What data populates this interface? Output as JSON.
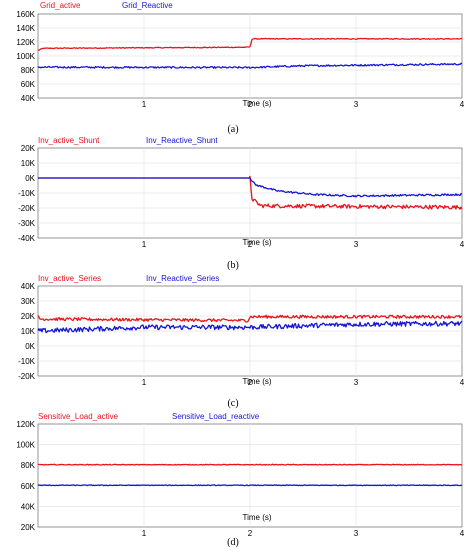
{
  "chart_data": [
    {
      "type": "line",
      "caption": "(a)",
      "xlabel": "Time (s)",
      "xlim": [
        0,
        4
      ],
      "xticks": [
        "1",
        "2",
        "3",
        "4"
      ],
      "ylim": [
        40000,
        160000
      ],
      "yticks": [
        "40K",
        "60K",
        "80K",
        "100K",
        "120K",
        "140K",
        "160K"
      ],
      "grid": true,
      "series": [
        {
          "name": "Grid_active",
          "color": "#e8141b",
          "noise": 600,
          "x": [
            0,
            0.05,
            1.97,
            2.0,
            2.02,
            4.0
          ],
          "y": [
            108000,
            111000,
            112500,
            113000,
            124500,
            124500
          ]
        },
        {
          "name": "Grid_Reactive",
          "color": "#1515d6",
          "noise": 1200,
          "x": [
            0,
            1.95,
            2.0,
            2.5,
            4.0
          ],
          "y": [
            84000,
            83500,
            83500,
            86000,
            88500
          ]
        }
      ]
    },
    {
      "type": "line",
      "caption": "(b)",
      "xlabel": "Time (s)",
      "xlim": [
        0,
        4
      ],
      "xticks": [
        "1",
        "2",
        "3",
        "4"
      ],
      "ylim": [
        -40000,
        20000
      ],
      "yticks": [
        "-40K",
        "-30K",
        "-20K",
        "-10K",
        "0K",
        "10K",
        "20K"
      ],
      "grid": true,
      "series": [
        {
          "name": "Inv_active_Shunt",
          "color": "#e8141b",
          "noise": 1300,
          "x": [
            0,
            2.0,
            2.02,
            2.1,
            4.0
          ],
          "y": [
            0,
            0,
            -14000,
            -18500,
            -19500
          ]
        },
        {
          "name": "Inv_Reactive_Shunt",
          "color": "#1515d6",
          "noise": 600,
          "x": [
            0,
            2.0,
            2.05,
            2.25,
            2.6,
            3.0,
            4.0
          ],
          "y": [
            0,
            0,
            -4500,
            -8500,
            -11000,
            -12000,
            -11000
          ]
        }
      ]
    },
    {
      "type": "line",
      "caption": "(c)",
      "xlabel": "Time (s)",
      "xlim": [
        0,
        4
      ],
      "xticks": [
        "1",
        "2",
        "3",
        "4"
      ],
      "ylim": [
        -20000,
        40000
      ],
      "yticks": [
        "-20K",
        "-10K",
        "0K",
        "10K",
        "20K",
        "30K",
        "40K"
      ],
      "grid": true,
      "series": [
        {
          "name": "Inv_active_Series",
          "color": "#e8141b",
          "noise": 1000,
          "x": [
            0,
            0.02,
            1.98,
            2.0,
            4.0
          ],
          "y": [
            20000,
            18000,
            17000,
            19500,
            19500
          ]
        },
        {
          "name": "Inv_Reactive_Series",
          "color": "#1515d6",
          "noise": 1600,
          "x": [
            0,
            1.0,
            2.0,
            3.0,
            4.0
          ],
          "y": [
            10000,
            12500,
            12500,
            14500,
            15000
          ]
        }
      ]
    },
    {
      "type": "line",
      "caption": "(d)",
      "xlabel": "Time (s)",
      "xlim": [
        0,
        4
      ],
      "xticks": [
        "1",
        "2",
        "3",
        "4"
      ],
      "ylim": [
        20000,
        120000
      ],
      "yticks": [
        "20K",
        "40K",
        "60K",
        "80K",
        "100K",
        "120K"
      ],
      "grid": true,
      "series": [
        {
          "name": "Sensitive_Load_active",
          "color": "#e8141b",
          "noise": 350,
          "x": [
            0,
            4.0
          ],
          "y": [
            80500,
            80500
          ]
        },
        {
          "name": "Sensitive_Load_reactive",
          "color": "#1515d6",
          "noise": 350,
          "x": [
            0,
            4.0
          ],
          "y": [
            60500,
            60500
          ]
        }
      ]
    }
  ]
}
